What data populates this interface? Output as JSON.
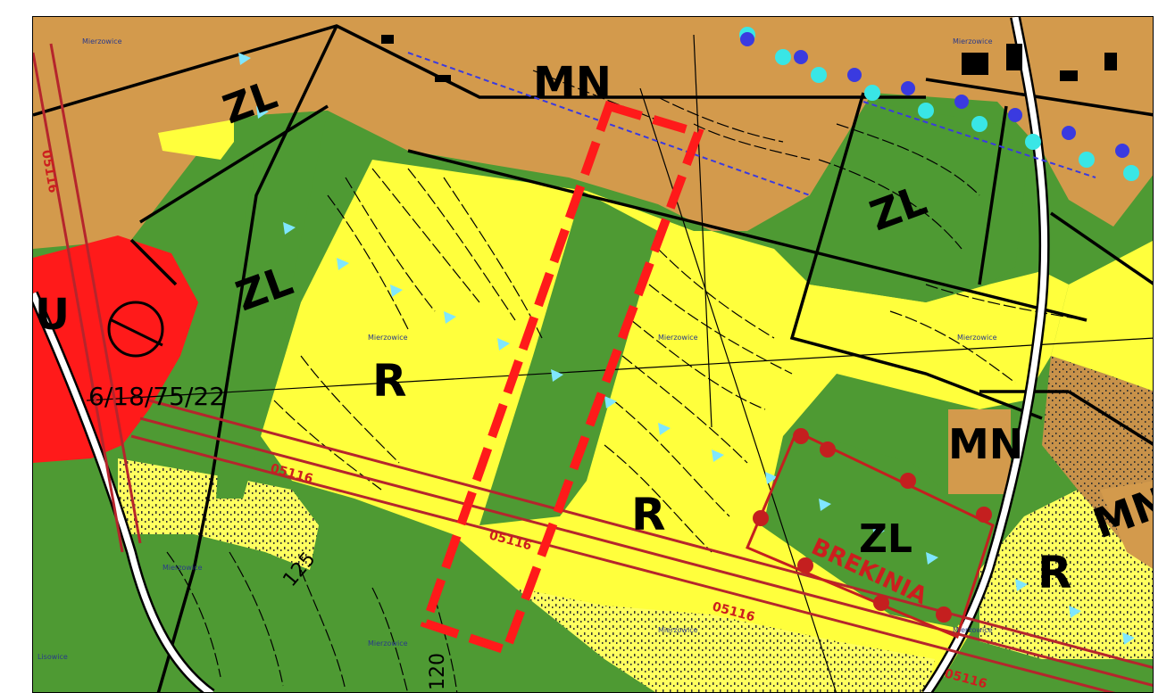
{
  "colors": {
    "residential": "#d39a4c",
    "forest": "#4e9a33",
    "agricultural": "#ffff3c",
    "service": "#ff1a1a",
    "pasture_pattern": "#ffff70",
    "boundary": "#000000",
    "powerline": "#b5252c",
    "dashed_area": "#ff1a1a",
    "contour": "#000000",
    "points_cyan": "#39e6e6",
    "points_blue": "#3a3ae0",
    "brekinia_dot": "#c41f1f"
  },
  "labels": {
    "mn_top": "MN",
    "zl_left_top": "ZL",
    "zl_left": "ZL",
    "zl_right": "ZL",
    "zl_brekinia": "ZL",
    "r_center": "R",
    "r_middle": "R",
    "r_right": "R",
    "mn_right_mid": "MN",
    "mn_right_low": "MN",
    "u_left": "U",
    "parcel_code": "6/18/75/22",
    "brekinia": "BREKINIA",
    "contour_125": "125",
    "contour_120": "120",
    "line_code_1": "05116",
    "line_code_2": "05116",
    "line_code_3": "05116",
    "line_code_4": "05116",
    "line_code_5": "05116"
  },
  "place_names": {
    "top_left": "Mierzowice",
    "top_right": "Mierzowice",
    "mid_left": "Mierzowice",
    "mid_center": "Mierzowice",
    "mid_right": "Mierzowice",
    "low_left": "Mierzowice",
    "low_center": "Mierzowice",
    "low_center2": "Mierzowice",
    "low_right": "Mierzowice",
    "bottom_left": "Lisowice"
  }
}
